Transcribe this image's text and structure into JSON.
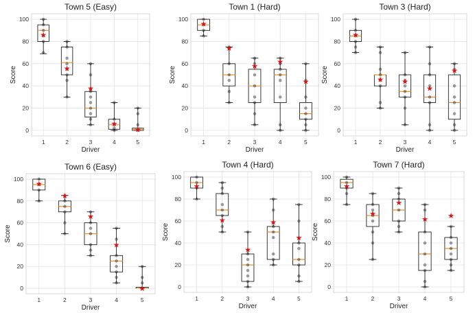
{
  "figure": {
    "xlabel": "Driver",
    "ylabel": "Score",
    "mean_marker": "★",
    "colors": {
      "box": "#222222",
      "median": "#e8902c",
      "mean": "#e01010",
      "point": "#000000",
      "grid": "#e3e3e3"
    }
  },
  "chart_data": [
    {
      "type": "box",
      "title": "Town 5 (Easy)",
      "categories": [
        "1",
        "2",
        "3",
        "4",
        "5"
      ],
      "ylim": [
        -5,
        105
      ],
      "yticks": [
        0,
        20,
        40,
        60,
        80,
        100
      ],
      "boxes": [
        {
          "q1": 80,
          "median": 90,
          "q3": 95,
          "wmin": 69,
          "wmax": 100,
          "mean": 86,
          "points": [
            100,
            95,
            90,
            85,
            80,
            70
          ]
        },
        {
          "q1": 50,
          "median": 61,
          "q3": 75,
          "wmin": 30,
          "wmax": 80,
          "mean": 56,
          "points": [
            80,
            75,
            65,
            60,
            55,
            50,
            45,
            30
          ]
        },
        {
          "q1": 12,
          "median": 20,
          "q3": 35,
          "wmin": 5,
          "wmax": 60,
          "mean": 38,
          "points": [
            60,
            50,
            35,
            30,
            25,
            20,
            15,
            10,
            5
          ]
        },
        {
          "q1": 1,
          "median": 5,
          "q3": 10,
          "wmin": 0,
          "wmax": 25,
          "mean": 6,
          "points": [
            25,
            10,
            5,
            2,
            0
          ]
        },
        {
          "q1": 0,
          "median": 1,
          "q3": 2,
          "wmin": 0,
          "wmax": 20,
          "mean": 1,
          "points": [
            20,
            15,
            5,
            0
          ]
        }
      ]
    },
    {
      "type": "box",
      "title": "Town 1 (Hard)",
      "categories": [
        "1",
        "2",
        "3",
        "4",
        "5"
      ],
      "ylim": [
        -5,
        105
      ],
      "yticks": [
        0,
        20,
        40,
        60,
        80,
        100
      ],
      "boxes": [
        {
          "q1": 90,
          "median": 95,
          "q3": 100,
          "wmin": 85,
          "wmax": 100,
          "mean": 96,
          "points": [
            100,
            95,
            90,
            85
          ]
        },
        {
          "q1": 40,
          "median": 50,
          "q3": 60,
          "wmin": 25,
          "wmax": 75,
          "mean": 74,
          "points": [
            75,
            60,
            50,
            45,
            35,
            25
          ]
        },
        {
          "q1": 25,
          "median": 40,
          "q3": 55,
          "wmin": 5,
          "wmax": 65,
          "mean": 58,
          "points": [
            65,
            60,
            50,
            40,
            30,
            25,
            15,
            5
          ]
        },
        {
          "q1": 25,
          "median": 50,
          "q3": 55,
          "wmin": 0,
          "wmax": 65,
          "mean": 62,
          "points": [
            65,
            60,
            55,
            50,
            45,
            30,
            5,
            0
          ]
        },
        {
          "q1": 10,
          "median": 15,
          "q3": 25,
          "wmin": 0,
          "wmax": 60,
          "mean": 44,
          "points": [
            60,
            45,
            30,
            20,
            15,
            10,
            5,
            0
          ]
        }
      ]
    },
    {
      "type": "box",
      "title": "Town 3 (Hard)",
      "categories": [
        "1",
        "2",
        "3",
        "4",
        "5"
      ],
      "ylim": [
        -5,
        105
      ],
      "yticks": [
        0,
        20,
        40,
        60,
        80,
        100
      ],
      "boxes": [
        {
          "q1": 80,
          "median": 85,
          "q3": 90,
          "wmin": 70,
          "wmax": 100,
          "mean": 86,
          "points": [
            100,
            90,
            85,
            80,
            75,
            70
          ]
        },
        {
          "q1": 40,
          "median": 50,
          "q3": 50,
          "wmin": 20,
          "wmax": 75,
          "mean": 46,
          "points": [
            75,
            70,
            55,
            50,
            45,
            40,
            25,
            20
          ]
        },
        {
          "q1": 30,
          "median": 35,
          "q3": 50,
          "wmin": 5,
          "wmax": 70,
          "mean": 44,
          "points": [
            70,
            50,
            45,
            40,
            35,
            30,
            20,
            5
          ]
        },
        {
          "q1": 25,
          "median": 30,
          "q3": 50,
          "wmin": 0,
          "wmax": 75,
          "mean": 38,
          "points": [
            75,
            60,
            50,
            40,
            30,
            25,
            5,
            0
          ]
        },
        {
          "q1": 10,
          "median": 25,
          "q3": 50,
          "wmin": 0,
          "wmax": 60,
          "mean": 54,
          "points": [
            60,
            55,
            40,
            30,
            25,
            15,
            5,
            0
          ]
        }
      ]
    },
    {
      "type": "box",
      "title": "Town 6 (Easy)",
      "categories": [
        "1",
        "2",
        "3",
        "4",
        "5"
      ],
      "ylim": [
        -5,
        105
      ],
      "yticks": [
        0,
        20,
        40,
        60,
        80,
        100
      ],
      "boxes": [
        {
          "q1": 90,
          "median": 95,
          "q3": 100,
          "wmin": 80,
          "wmax": 100,
          "mean": 96,
          "points": [
            100,
            95,
            90,
            80
          ]
        },
        {
          "q1": 70,
          "median": 75,
          "q3": 80,
          "wmin": 50,
          "wmax": 85,
          "mean": 85,
          "points": [
            85,
            80,
            75,
            70,
            60,
            50
          ]
        },
        {
          "q1": 40,
          "median": 50,
          "q3": 60,
          "wmin": 30,
          "wmax": 70,
          "mean": 66,
          "points": [
            70,
            60,
            55,
            50,
            40,
            35,
            30
          ]
        },
        {
          "q1": 15,
          "median": 25,
          "q3": 30,
          "wmin": 5,
          "wmax": 55,
          "mean": 40,
          "points": [
            55,
            45,
            30,
            25,
            20,
            15,
            10,
            5
          ]
        },
        {
          "q1": 0,
          "median": 0,
          "q3": 1,
          "wmin": 0,
          "wmax": 20,
          "mean": 0,
          "points": [
            20,
            10,
            5,
            0
          ]
        }
      ]
    },
    {
      "type": "box",
      "title": "Town 4 (Hard)",
      "categories": [
        "1",
        "2",
        "3",
        "4",
        "5"
      ],
      "ylim": [
        -5,
        105
      ],
      "yticks": [
        0,
        20,
        40,
        60,
        80,
        100
      ],
      "boxes": [
        {
          "q1": 90,
          "median": 95,
          "q3": 100,
          "wmin": 80,
          "wmax": 100,
          "mean": 92,
          "points": [
            100,
            95,
            90,
            80
          ]
        },
        {
          "q1": 65,
          "median": 70,
          "q3": 85,
          "wmin": 50,
          "wmax": 95,
          "mean": 61,
          "points": [
            95,
            90,
            85,
            75,
            70,
            65,
            55,
            50
          ]
        },
        {
          "q1": 5,
          "median": 20,
          "q3": 30,
          "wmin": 0,
          "wmax": 50,
          "mean": 34,
          "points": [
            50,
            30,
            25,
            20,
            15,
            10,
            5,
            0
          ]
        },
        {
          "q1": 25,
          "median": 50,
          "q3": 55,
          "wmin": 20,
          "wmax": 80,
          "mean": 59,
          "points": [
            80,
            70,
            55,
            50,
            45,
            30,
            25,
            20
          ]
        },
        {
          "q1": 20,
          "median": 25,
          "q3": 40,
          "wmin": 5,
          "wmax": 75,
          "mean": 45,
          "points": [
            75,
            60,
            40,
            35,
            25,
            20,
            10,
            5
          ]
        }
      ]
    },
    {
      "type": "box",
      "title": "Town 7 (Hard)",
      "categories": [
        "1",
        "2",
        "3",
        "4",
        "5"
      ],
      "ylim": [
        -5,
        105
      ],
      "yticks": [
        0,
        20,
        40,
        60,
        80,
        100
      ],
      "boxes": [
        {
          "q1": 90,
          "median": 95,
          "q3": 98,
          "wmin": 75,
          "wmax": 100,
          "mean": 92,
          "points": [
            100,
            95,
            90,
            85,
            75
          ]
        },
        {
          "q1": 55,
          "median": 65,
          "q3": 75,
          "wmin": 25,
          "wmax": 85,
          "mean": 67,
          "points": [
            85,
            75,
            70,
            65,
            60,
            50,
            40,
            25
          ]
        },
        {
          "q1": 60,
          "median": 70,
          "q3": 80,
          "wmin": 50,
          "wmax": 90,
          "mean": 77,
          "points": [
            90,
            85,
            80,
            70,
            60,
            55,
            50
          ]
        },
        {
          "q1": 15,
          "median": 30,
          "q3": 50,
          "wmin": 0,
          "wmax": 75,
          "mean": 62,
          "points": [
            75,
            70,
            50,
            40,
            30,
            20,
            15,
            5,
            0
          ]
        },
        {
          "q1": 25,
          "median": 35,
          "q3": 45,
          "wmin": 15,
          "wmax": 55,
          "mean": 65,
          "points": [
            55,
            45,
            40,
            35,
            30,
            25,
            20,
            15
          ]
        }
      ]
    }
  ]
}
